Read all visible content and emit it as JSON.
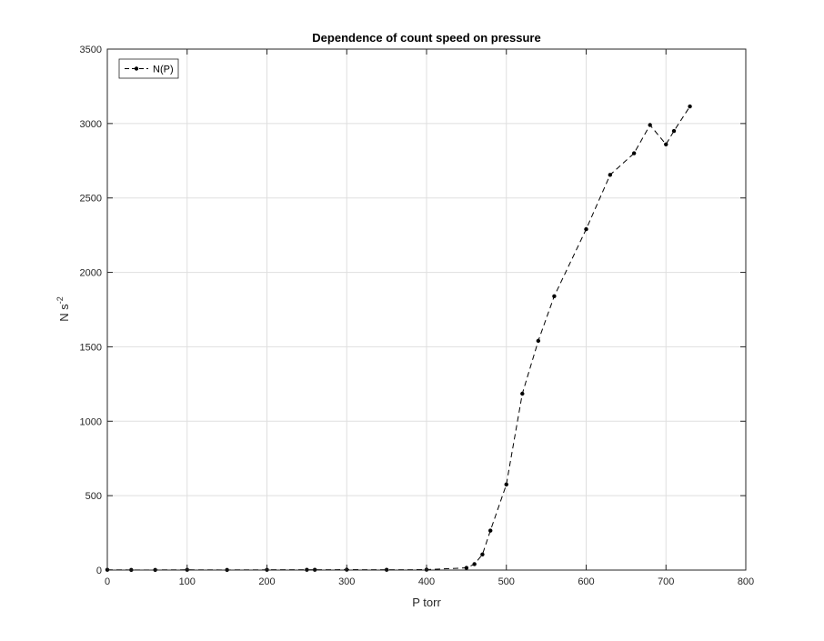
{
  "chart_data": {
    "type": "line",
    "title": "Dependence of count speed on pressure",
    "xlabel": "P torr",
    "ylabel_base": "N s",
    "ylabel_sup": "-2",
    "xlim": [
      0,
      800
    ],
    "ylim": [
      0,
      3500
    ],
    "xticks": [
      0,
      100,
      200,
      300,
      400,
      500,
      600,
      700,
      800
    ],
    "yticks": [
      0,
      500,
      1000,
      1500,
      2000,
      2500,
      3000,
      3500
    ],
    "grid": true,
    "legend_position": "top-left",
    "series": [
      {
        "name": "N(P)",
        "color": "#000000",
        "line_style": "dashed",
        "marker": "dot",
        "x": [
          0,
          30,
          60,
          100,
          150,
          200,
          250,
          260,
          300,
          350,
          400,
          450,
          460,
          470,
          480,
          500,
          520,
          540,
          560,
          600,
          630,
          660,
          680,
          700,
          710,
          730
        ],
        "y": [
          2,
          1,
          1,
          2,
          1,
          2,
          2,
          2,
          3,
          2,
          3,
          15,
          40,
          105,
          265,
          575,
          1185,
          1540,
          1840,
          2290,
          2655,
          2800,
          2990,
          2860,
          2950,
          3115
        ]
      }
    ]
  }
}
